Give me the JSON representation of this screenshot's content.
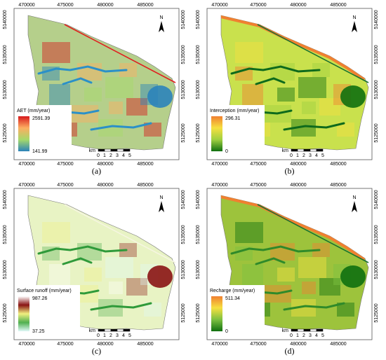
{
  "panels": [
    {
      "caption": "(a)",
      "legend_title": "AET (mm/year)",
      "legend_max": "2591.39",
      "legend_min": "141.99",
      "gradient": [
        "#d7191c",
        "#fdae61",
        "#a6d96a",
        "#2b83ba"
      ],
      "base_fill": "#b5cf8b",
      "line_color": "#e02020",
      "river_color": "#2b90c8"
    },
    {
      "caption": "(b)",
      "legend_title": "Interception (mm/year)",
      "legend_max": "296.31",
      "legend_min": "0",
      "gradient": [
        "#f08030",
        "#f6e040",
        "#a0d040",
        "#107010"
      ],
      "base_fill": "#c9e14d",
      "line_color": "#1a7030",
      "river_color": "#0e6a1c"
    },
    {
      "caption": "(c)",
      "legend_title": "Surface runoff (mm/year)",
      "legend_max": "987.26",
      "legend_min": "37.25",
      "gradient": [
        "#ffffff",
        "#8a1414",
        "#f0f080",
        "#50b050",
        "#e0f8f8"
      ],
      "base_fill": "#e8f3c4",
      "line_color": "#f5f5e0",
      "river_color": "#2f9a3a"
    },
    {
      "caption": "(d)",
      "legend_title": "Recharge (mm/year)",
      "legend_max": "511.34",
      "legend_min": "0",
      "gradient": [
        "#f08030",
        "#f6e040",
        "#7cc040",
        "#107010"
      ],
      "base_fill": "#9dc33c",
      "line_color": "#1a7030",
      "river_color": "#2f8a2a"
    }
  ],
  "axis": {
    "x_ticks": [
      "470000",
      "475000",
      "480000",
      "485000"
    ],
    "y_ticks": [
      "5140000",
      "5135000",
      "5130000",
      "5125000"
    ]
  },
  "scale_bar": {
    "unit": "km",
    "labels": [
      "0",
      "1",
      "2",
      "3",
      "4",
      "5"
    ]
  },
  "north_arrow": "N"
}
